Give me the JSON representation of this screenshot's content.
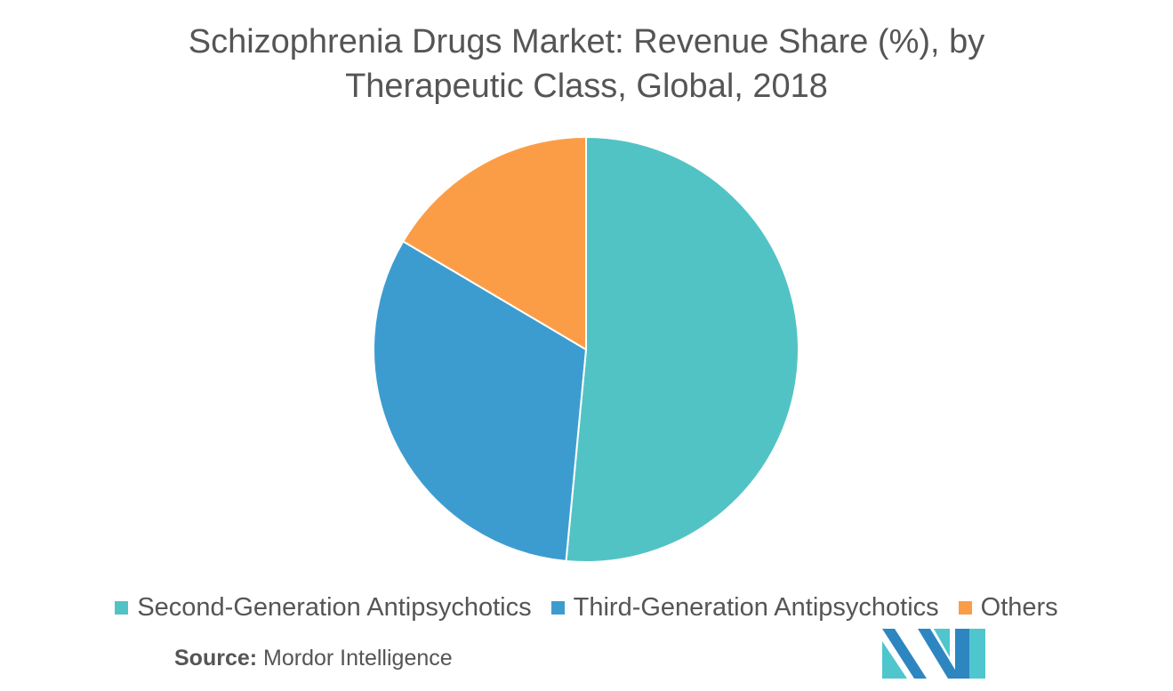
{
  "chart_data": {
    "type": "pie",
    "title": "Schizophrenia Drugs Market: Revenue Share (%), by Therapeutic Class, Global, 2018",
    "title_lines": [
      "Schizophrenia Drugs Market: Revenue Share (%), by",
      "Therapeutic Class, Global, 2018"
    ],
    "categories": [
      "Second-Generation Antipsychotics",
      "Third-Generation Antipsychotics",
      "Others"
    ],
    "values": [
      51.5,
      32.0,
      16.5
    ],
    "unit": "%",
    "colors": [
      "#52c3c5",
      "#3d9ccf",
      "#fb9d47"
    ],
    "legend_position": "bottom"
  },
  "source": {
    "label": "Source:",
    "text": "Mordor Intelligence"
  },
  "logo": {
    "icon": "mordor-intelligence-logo",
    "colors": [
      "#2e86c1",
      "#4fc6cd"
    ]
  }
}
